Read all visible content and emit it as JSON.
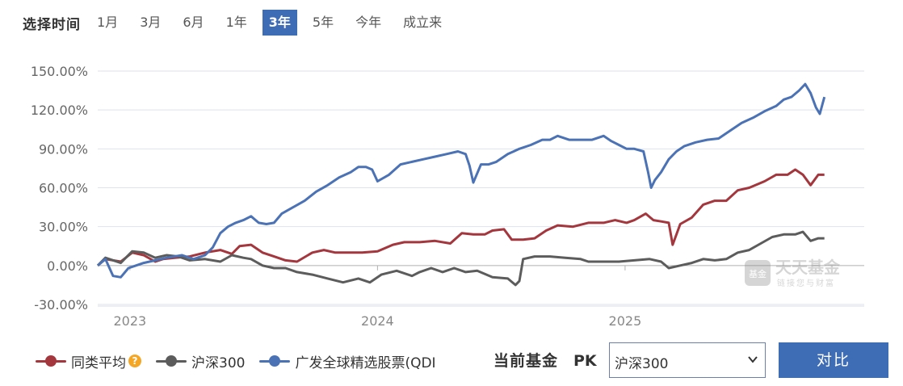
{
  "period_selector": {
    "label": "选择时间",
    "tabs": [
      {
        "label": "1月",
        "active": false
      },
      {
        "label": "3月",
        "active": false
      },
      {
        "label": "6月",
        "active": false
      },
      {
        "label": "1年",
        "active": false
      },
      {
        "label": "3年",
        "active": true
      },
      {
        "label": "5年",
        "active": false
      },
      {
        "label": "今年",
        "active": false
      },
      {
        "label": "成立来",
        "active": false
      }
    ]
  },
  "watermark": {
    "brand": "天天基金",
    "tagline": "链接您与财富"
  },
  "legend": {
    "items": [
      {
        "name": "同类平均",
        "color": "#a4373d",
        "help_icon": "question-icon"
      },
      {
        "name": "沪深300",
        "color": "#5c5c5c"
      },
      {
        "name": "广发全球精选股票(QDI",
        "color": "#4a72b5"
      }
    ]
  },
  "compare": {
    "label": "当前基金",
    "pk": "PK",
    "selected": "沪深300",
    "button": "对比"
  },
  "chart_data": {
    "type": "line",
    "y_ticks": [
      "150.00%",
      "120.00%",
      "90.00%",
      "60.00%",
      "30.00%",
      "0.00%",
      "-30.00%"
    ],
    "y_range": [
      -30,
      150
    ],
    "x_range": [
      0,
      1000
    ],
    "x_tick_labels": [
      {
        "label": "2023",
        "x": 42
      },
      {
        "label": "2024",
        "x": 365
      },
      {
        "label": "2025",
        "x": 688
      }
    ],
    "grid": "horizontal",
    "series": [
      {
        "name": "同类平均",
        "color": "#a4373d",
        "points": [
          [
            0,
            0
          ],
          [
            10,
            5
          ],
          [
            30,
            3
          ],
          [
            45,
            10
          ],
          [
            60,
            8
          ],
          [
            75,
            3
          ],
          [
            85,
            5
          ],
          [
            100,
            6
          ],
          [
            120,
            7
          ],
          [
            140,
            10
          ],
          [
            160,
            12
          ],
          [
            175,
            9
          ],
          [
            185,
            15
          ],
          [
            200,
            16
          ],
          [
            215,
            10
          ],
          [
            230,
            7
          ],
          [
            245,
            4
          ],
          [
            260,
            3
          ],
          [
            280,
            10
          ],
          [
            295,
            12
          ],
          [
            310,
            10
          ],
          [
            330,
            10
          ],
          [
            345,
            10
          ],
          [
            365,
            11
          ],
          [
            385,
            16
          ],
          [
            400,
            18
          ],
          [
            420,
            18
          ],
          [
            440,
            19
          ],
          [
            460,
            17
          ],
          [
            475,
            25
          ],
          [
            490,
            24
          ],
          [
            505,
            24
          ],
          [
            515,
            27
          ],
          [
            530,
            28
          ],
          [
            540,
            20
          ],
          [
            555,
            20
          ],
          [
            570,
            21
          ],
          [
            585,
            27
          ],
          [
            600,
            31
          ],
          [
            620,
            30
          ],
          [
            640,
            33
          ],
          [
            660,
            33
          ],
          [
            675,
            35
          ],
          [
            690,
            33
          ],
          [
            700,
            35
          ],
          [
            715,
            40
          ],
          [
            725,
            35
          ],
          [
            735,
            34
          ],
          [
            745,
            33
          ],
          [
            750,
            16
          ],
          [
            760,
            32
          ],
          [
            775,
            37
          ],
          [
            790,
            47
          ],
          [
            805,
            50
          ],
          [
            820,
            50
          ],
          [
            835,
            58
          ],
          [
            850,
            60
          ],
          [
            870,
            65
          ],
          [
            885,
            70
          ],
          [
            900,
            70
          ],
          [
            910,
            74
          ],
          [
            920,
            70
          ],
          [
            930,
            62
          ],
          [
            940,
            70
          ],
          [
            948,
            70
          ]
        ]
      },
      {
        "name": "沪深300",
        "color": "#5c5c5c",
        "points": [
          [
            0,
            0
          ],
          [
            10,
            6
          ],
          [
            30,
            2
          ],
          [
            45,
            11
          ],
          [
            60,
            10
          ],
          [
            75,
            6
          ],
          [
            90,
            8
          ],
          [
            105,
            7
          ],
          [
            120,
            4
          ],
          [
            140,
            5
          ],
          [
            160,
            3
          ],
          [
            175,
            8
          ],
          [
            190,
            6
          ],
          [
            200,
            5
          ],
          [
            215,
            0
          ],
          [
            230,
            -2
          ],
          [
            245,
            -2
          ],
          [
            260,
            -5
          ],
          [
            280,
            -7
          ],
          [
            300,
            -10
          ],
          [
            320,
            -13
          ],
          [
            340,
            -10
          ],
          [
            355,
            -13
          ],
          [
            370,
            -7
          ],
          [
            390,
            -4
          ],
          [
            410,
            -8
          ],
          [
            420,
            -5
          ],
          [
            435,
            -2
          ],
          [
            450,
            -5
          ],
          [
            465,
            -2
          ],
          [
            480,
            -5
          ],
          [
            495,
            -4
          ],
          [
            515,
            -9
          ],
          [
            535,
            -10
          ],
          [
            545,
            -15
          ],
          [
            550,
            -12
          ],
          [
            555,
            5
          ],
          [
            570,
            7
          ],
          [
            590,
            7
          ],
          [
            610,
            6
          ],
          [
            630,
            5
          ],
          [
            640,
            3
          ],
          [
            660,
            3
          ],
          [
            680,
            3
          ],
          [
            700,
            4
          ],
          [
            720,
            5
          ],
          [
            735,
            3
          ],
          [
            745,
            -2
          ],
          [
            760,
            0
          ],
          [
            775,
            2
          ],
          [
            790,
            5
          ],
          [
            805,
            4
          ],
          [
            820,
            5
          ],
          [
            835,
            10
          ],
          [
            850,
            12
          ],
          [
            865,
            17
          ],
          [
            880,
            22
          ],
          [
            895,
            24
          ],
          [
            910,
            24
          ],
          [
            920,
            26
          ],
          [
            930,
            19
          ],
          [
            940,
            21
          ],
          [
            948,
            21
          ]
        ]
      },
      {
        "name": "广发全球精选股票(QDI",
        "color": "#4a72b5",
        "points": [
          [
            0,
            0
          ],
          [
            10,
            5
          ],
          [
            20,
            -8
          ],
          [
            30,
            -9
          ],
          [
            40,
            -2
          ],
          [
            50,
            0
          ],
          [
            60,
            2
          ],
          [
            75,
            4
          ],
          [
            90,
            6
          ],
          [
            110,
            8
          ],
          [
            125,
            5
          ],
          [
            140,
            8
          ],
          [
            150,
            14
          ],
          [
            160,
            25
          ],
          [
            170,
            30
          ],
          [
            180,
            33
          ],
          [
            190,
            35
          ],
          [
            200,
            38
          ],
          [
            210,
            33
          ],
          [
            220,
            32
          ],
          [
            230,
            33
          ],
          [
            240,
            40
          ],
          [
            255,
            45
          ],
          [
            270,
            50
          ],
          [
            285,
            57
          ],
          [
            300,
            62
          ],
          [
            315,
            68
          ],
          [
            330,
            72
          ],
          [
            340,
            76
          ],
          [
            350,
            76
          ],
          [
            358,
            74
          ],
          [
            365,
            65
          ],
          [
            380,
            70
          ],
          [
            395,
            78
          ],
          [
            410,
            80
          ],
          [
            425,
            82
          ],
          [
            440,
            84
          ],
          [
            455,
            86
          ],
          [
            470,
            88
          ],
          [
            480,
            86
          ],
          [
            485,
            77
          ],
          [
            490,
            64
          ],
          [
            500,
            78
          ],
          [
            510,
            78
          ],
          [
            520,
            80
          ],
          [
            535,
            86
          ],
          [
            550,
            90
          ],
          [
            565,
            93
          ],
          [
            580,
            97
          ],
          [
            590,
            97
          ],
          [
            600,
            100
          ],
          [
            615,
            97
          ],
          [
            630,
            97
          ],
          [
            645,
            97
          ],
          [
            660,
            100
          ],
          [
            670,
            96
          ],
          [
            680,
            93
          ],
          [
            690,
            90
          ],
          [
            700,
            90
          ],
          [
            712,
            88
          ],
          [
            718,
            72
          ],
          [
            722,
            60
          ],
          [
            727,
            66
          ],
          [
            735,
            72
          ],
          [
            745,
            82
          ],
          [
            755,
            88
          ],
          [
            765,
            92
          ],
          [
            780,
            95
          ],
          [
            795,
            97
          ],
          [
            810,
            98
          ],
          [
            825,
            104
          ],
          [
            840,
            110
          ],
          [
            855,
            114
          ],
          [
            870,
            119
          ],
          [
            885,
            123
          ],
          [
            895,
            128
          ],
          [
            905,
            130
          ],
          [
            915,
            135
          ],
          [
            923,
            140
          ],
          [
            930,
            133
          ],
          [
            937,
            122
          ],
          [
            942,
            117
          ],
          [
            948,
            130
          ]
        ]
      }
    ]
  }
}
